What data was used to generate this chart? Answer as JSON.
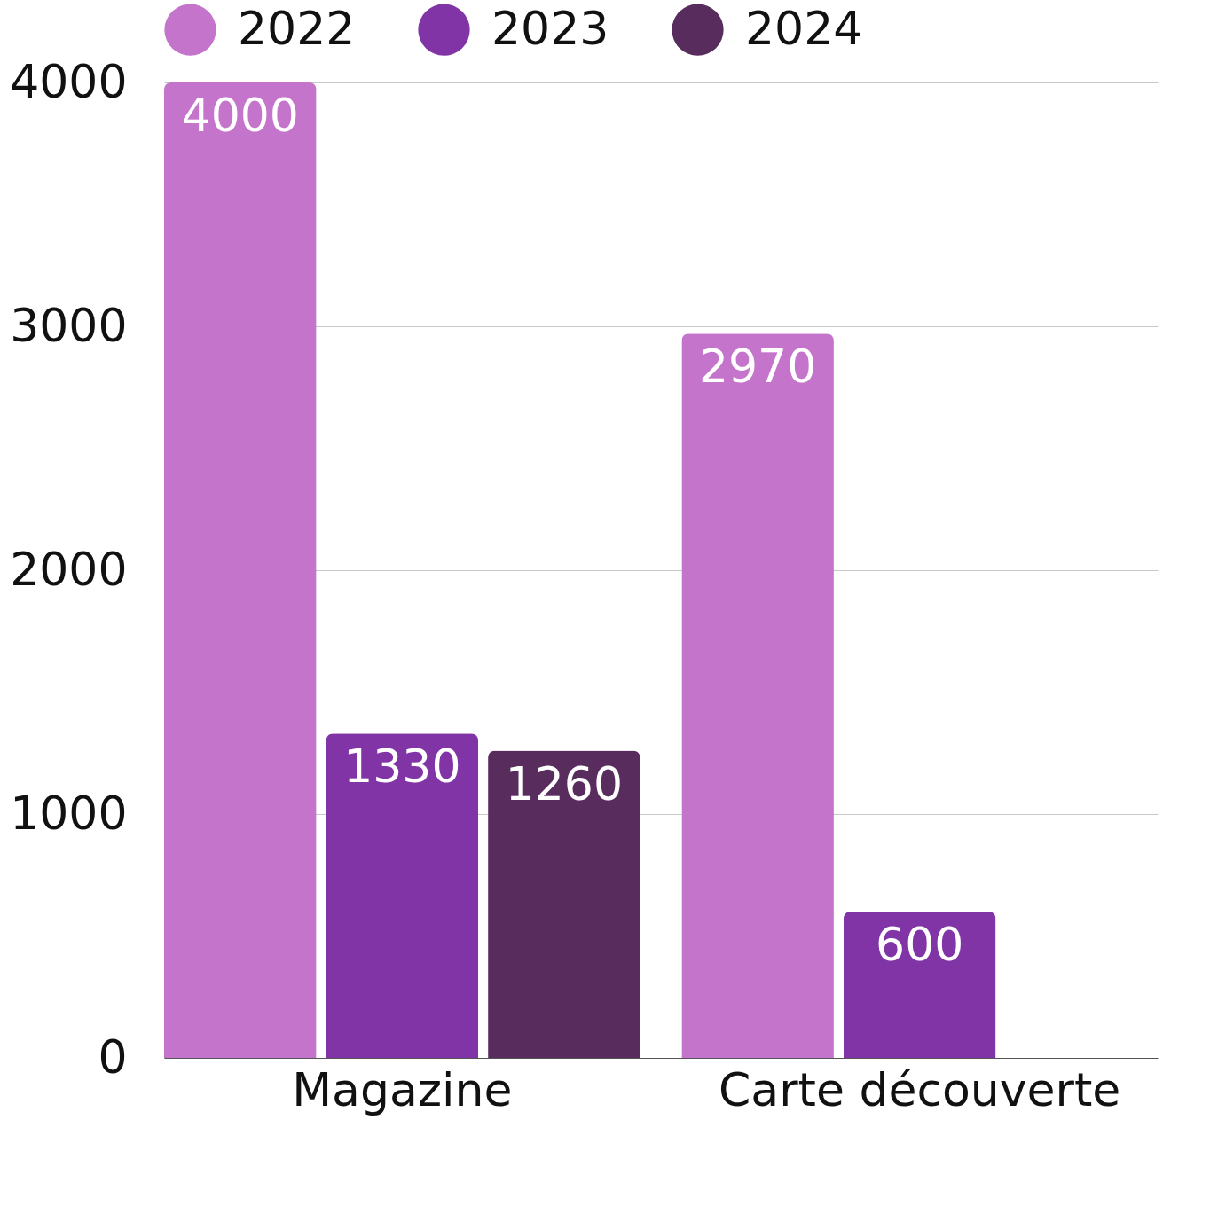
{
  "chart_data": {
    "type": "bar",
    "categories": [
      "Magazine",
      "Carte découverte"
    ],
    "series": [
      {
        "name": "2022",
        "color": "#c474ca",
        "values": [
          4000,
          2970
        ]
      },
      {
        "name": "2023",
        "color": "#8134a6",
        "values": [
          1330,
          600
        ]
      },
      {
        "name": "2024",
        "color": "#582d5e",
        "values": [
          1260,
          null
        ]
      }
    ],
    "ylim": [
      0,
      4000
    ],
    "yticks": [
      0,
      1000,
      2000,
      3000,
      4000
    ],
    "grid": "y",
    "legend": "top",
    "data_labels": true
  }
}
